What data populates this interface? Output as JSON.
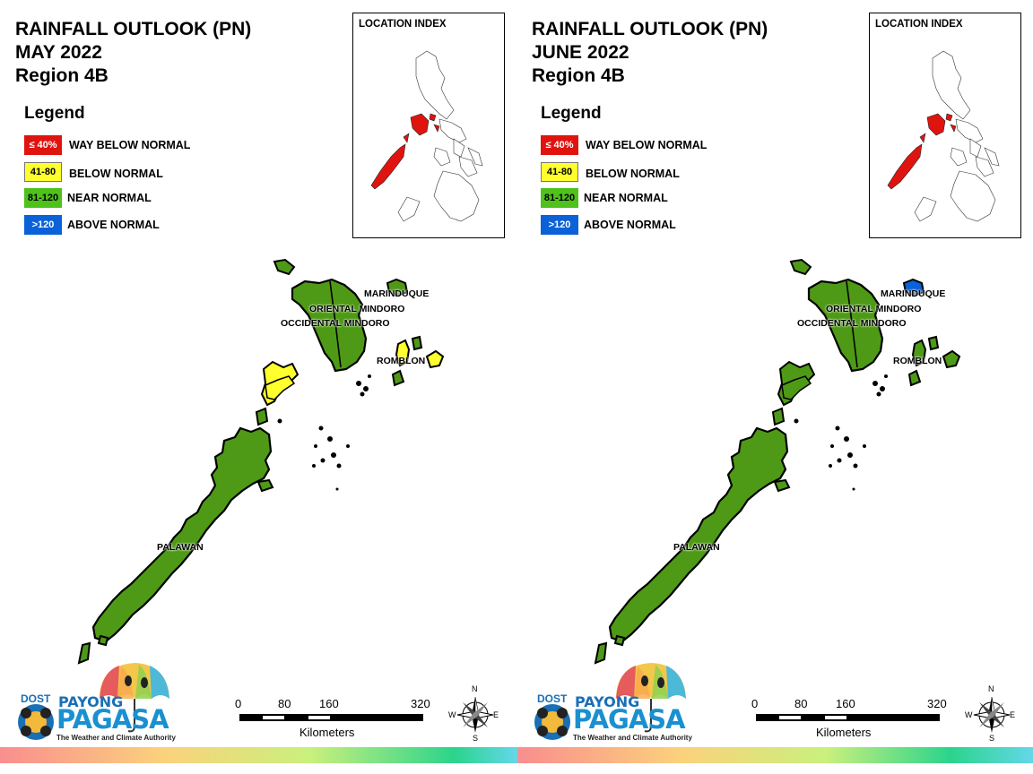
{
  "panels": [
    {
      "title_line1": "RAINFALL OUTLOOK (PN)",
      "title_line2": "MAY 2022",
      "title_line3": "Region 4B",
      "legend_title": "Legend",
      "legend": [
        {
          "code": "≤ 40%",
          "label": "WAY BELOW NORMAL",
          "color": "#e0140f"
        },
        {
          "code": "41-80",
          "label": "BELOW NORMAL",
          "color": "#ffff2e"
        },
        {
          "code": "81-120",
          "label": "NEAR NORMAL",
          "color": "#4ec21b"
        },
        {
          "code": ">120",
          "label": "ABOVE NORMAL",
          "color": "#0a61d8"
        }
      ],
      "index_title": "LOCATION INDEX",
      "provinces": {
        "marinduque": "MARINDUQUE",
        "oriental_mindoro": "ORIENTAL MINDORO",
        "occidental_mindoro": "OCCIDENTAL MINDORO",
        "romblon": "ROMBLON",
        "palawan": "PALAWAN"
      },
      "province_colors": {
        "palawan": "#4e9a16",
        "calamian": "#ffff2e",
        "mindoro": "#4e9a16",
        "marinduque": "#4e9a16",
        "romblon": "#ffff2e"
      },
      "scale": {
        "ticks": [
          "0",
          "80",
          "160",
          "320"
        ],
        "unit": "Kilometers"
      },
      "compass": {
        "n": "N",
        "s": "S",
        "e": "E",
        "w": "W"
      },
      "logo": {
        "dost": "DOST",
        "payong": "PAYONG",
        "pagasa": "PAGASA",
        "tagline": "The Weather and Climate Authority"
      }
    },
    {
      "title_line1": "RAINFALL OUTLOOK (PN)",
      "title_line2": "JUNE 2022",
      "title_line3": "Region 4B",
      "legend_title": "Legend",
      "legend": [
        {
          "code": "≤ 40%",
          "label": "WAY BELOW NORMAL",
          "color": "#e0140f"
        },
        {
          "code": "41-80",
          "label": "BELOW NORMAL",
          "color": "#ffff2e"
        },
        {
          "code": "81-120",
          "label": "NEAR NORMAL",
          "color": "#4ec21b"
        },
        {
          "code": ">120",
          "label": "ABOVE NORMAL",
          "color": "#0a61d8"
        }
      ],
      "index_title": "LOCATION INDEX",
      "provinces": {
        "marinduque": "MARINDUQUE",
        "oriental_mindoro": "ORIENTAL MINDORO",
        "occidental_mindoro": "OCCIDENTAL MINDORO",
        "romblon": "ROMBLON",
        "palawan": "PALAWAN"
      },
      "province_colors": {
        "palawan": "#4e9a16",
        "calamian": "#4e9a16",
        "mindoro": "#4e9a16",
        "marinduque": "#0a61d8",
        "romblon": "#4e9a16"
      },
      "scale": {
        "ticks": [
          "0",
          "80",
          "160",
          "320"
        ],
        "unit": "Kilometers"
      },
      "compass": {
        "n": "N",
        "s": "S",
        "e": "E",
        "w": "W"
      },
      "logo": {
        "dost": "DOST",
        "payong": "PAYONG",
        "pagasa": "PAGASA",
        "tagline": "The Weather and Climate Authority"
      }
    }
  ]
}
